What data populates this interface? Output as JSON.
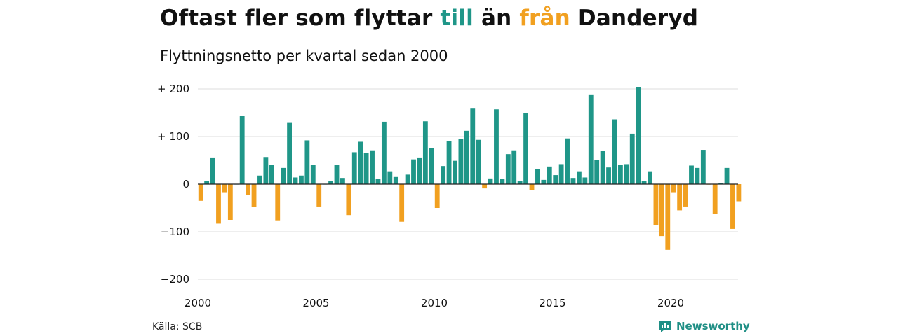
{
  "title": {
    "part1": "Oftast fler som flyttar ",
    "till": "till",
    "part2": " än ",
    "fran": "från",
    "part3": " Danderyd"
  },
  "subtitle": "Flyttningsnetto per kvartal sedan 2000",
  "source": "Källa: SCB",
  "brand": {
    "name": "Newsworthy",
    "icon": "newsworthy-logo-icon"
  },
  "colors": {
    "positive": "#1f9688",
    "negative": "#f1a020",
    "grid": "#dddddd",
    "zero_line": "#222222"
  },
  "chart_data": {
    "type": "bar",
    "title": "Oftast fler som flyttar till än från Danderyd",
    "subtitle": "Flyttningsnetto per kvartal sedan 2000",
    "ylim": [
      -200,
      200
    ],
    "y_ticks": [
      200,
      100,
      0,
      -100,
      -200
    ],
    "y_tick_labels": [
      "+ 200",
      "+ 100",
      "0",
      "−100",
      "−200"
    ],
    "x_ticks": [
      "2000",
      "2005",
      "2010",
      "2015",
      "2020"
    ],
    "grid": true,
    "start_year": 2000,
    "categories": [
      "2000 Q1",
      "2000 Q2",
      "2000 Q3",
      "2000 Q4",
      "2001 Q1",
      "2001 Q2",
      "2001 Q3",
      "2001 Q4",
      "2002 Q1",
      "2002 Q2",
      "2002 Q3",
      "2002 Q4",
      "2003 Q1",
      "2003 Q2",
      "2003 Q3",
      "2003 Q4",
      "2004 Q1",
      "2004 Q2",
      "2004 Q3",
      "2004 Q4",
      "2005 Q1",
      "2005 Q2",
      "2005 Q3",
      "2005 Q4",
      "2006 Q1",
      "2006 Q2",
      "2006 Q3",
      "2006 Q4",
      "2007 Q1",
      "2007 Q2",
      "2007 Q3",
      "2007 Q4",
      "2008 Q1",
      "2008 Q2",
      "2008 Q3",
      "2008 Q4",
      "2009 Q1",
      "2009 Q2",
      "2009 Q3",
      "2009 Q4",
      "2010 Q1",
      "2010 Q2",
      "2010 Q3",
      "2010 Q4",
      "2011 Q1",
      "2011 Q2",
      "2011 Q3",
      "2011 Q4",
      "2012 Q1",
      "2012 Q2",
      "2012 Q3",
      "2012 Q4",
      "2013 Q1",
      "2013 Q2",
      "2013 Q3",
      "2013 Q4",
      "2014 Q1",
      "2014 Q2",
      "2014 Q3",
      "2014 Q4",
      "2015 Q1",
      "2015 Q2",
      "2015 Q3",
      "2015 Q4",
      "2016 Q1",
      "2016 Q2",
      "2016 Q3",
      "2016 Q4",
      "2017 Q1",
      "2017 Q2",
      "2017 Q3",
      "2017 Q4",
      "2018 Q1",
      "2018 Q2",
      "2018 Q3",
      "2018 Q4",
      "2019 Q1",
      "2019 Q2",
      "2019 Q3",
      "2019 Q4",
      "2020 Q1",
      "2020 Q2",
      "2020 Q3",
      "2020 Q4",
      "2021 Q1",
      "2021 Q2",
      "2021 Q3",
      "2021 Q4",
      "2022 Q1",
      "2022 Q2",
      "2022 Q3",
      "2022 Q4"
    ],
    "values": [
      -35,
      7,
      56,
      -83,
      -17,
      -75,
      0,
      144,
      -23,
      -48,
      18,
      57,
      40,
      -76,
      34,
      130,
      14,
      18,
      92,
      40,
      -47,
      0,
      7,
      40,
      13,
      -65,
      67,
      89,
      66,
      71,
      11,
      131,
      27,
      15,
      -79,
      20,
      52,
      56,
      132,
      75,
      -50,
      38,
      90,
      49,
      95,
      112,
      160,
      93,
      -9,
      12,
      157,
      11,
      63,
      71,
      6,
      149,
      -13,
      31,
      9,
      37,
      19,
      42,
      96,
      13,
      27,
      14,
      187,
      51,
      70,
      35,
      136,
      40,
      42,
      106,
      204,
      7,
      27,
      -86,
      -109,
      -138,
      -17,
      -55,
      -47,
      39,
      34,
      72,
      -1,
      -63,
      2,
      34,
      -94,
      -36
    ]
  }
}
